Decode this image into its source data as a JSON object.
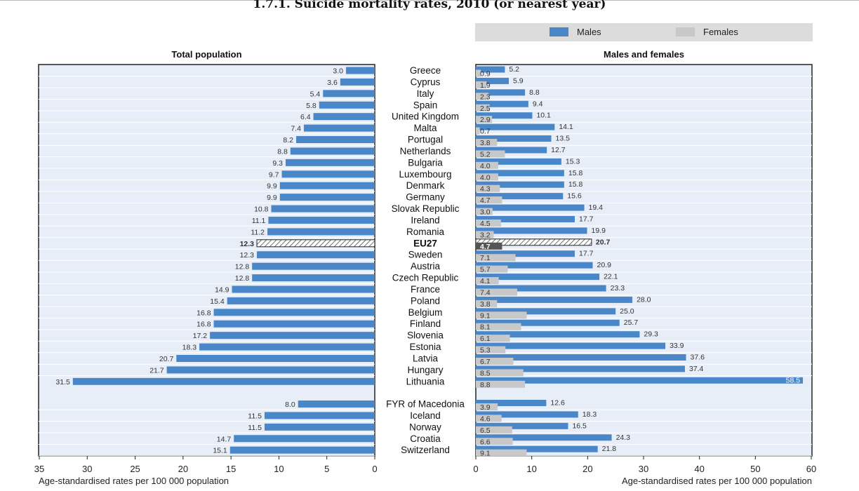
{
  "title": "1.7.1. Suicide mortality rates, 2010 (or nearest year)",
  "legend": {
    "males": "Males",
    "females": "Females"
  },
  "colors": {
    "male": "#4a87c9",
    "female": "#c8c8c8",
    "panel": "#e8eef8",
    "eu_fill": "#555555"
  },
  "chart_data": [
    {
      "type": "bar",
      "title": "Total population",
      "xlabel": "Age-standardised rates per 100 000 population",
      "xlim": [
        0,
        35
      ],
      "orientation": "horizontal-reversed",
      "xticks": [
        "35",
        "30",
        "25",
        "20",
        "15",
        "10",
        "5",
        "0"
      ],
      "categories": [
        "Greece",
        "Cyprus",
        "Italy",
        "Spain",
        "United Kingdom",
        "Malta",
        "Portugal",
        "Netherlands",
        "Bulgaria",
        "Luxembourg",
        "Denmark",
        "Germany",
        "Slovak Republic",
        "Ireland",
        "Romania",
        "EU27",
        "Sweden",
        "Austria",
        "Czech Republic",
        "France",
        "Poland",
        "Belgium",
        "Finland",
        "Slovenia",
        "Estonia",
        "Latvia",
        "Hungary",
        "Lithuania",
        "FYR of Macedonia",
        "Iceland",
        "Norway",
        "Croatia",
        "Switzerland"
      ],
      "values": [
        3.0,
        3.6,
        5.4,
        5.8,
        6.4,
        7.4,
        8.2,
        8.8,
        9.3,
        9.7,
        9.9,
        9.9,
        10.8,
        11.1,
        11.2,
        12.3,
        12.3,
        12.8,
        12.8,
        14.9,
        15.4,
        16.8,
        16.8,
        17.2,
        18.3,
        20.7,
        21.7,
        31.5,
        8.0,
        11.5,
        11.5,
        14.7,
        15.1
      ],
      "labels": [
        "3.0",
        "3.6",
        "5.4",
        "5.8",
        "6.4",
        "7.4",
        "8.2",
        "8.8",
        "9.3",
        "9.7",
        "9.9",
        "9.9",
        "10.8",
        "11.1",
        "11.2",
        "12.3",
        "12.3",
        "12.8",
        "12.8",
        "14.9",
        "15.4",
        "16.8",
        "16.8",
        "17.2",
        "18.3",
        "20.7",
        "21.7",
        "31.5",
        "8.0",
        "11.5",
        "11.5",
        "14.7",
        "15.1"
      ]
    },
    {
      "type": "bar",
      "title": "Males and females",
      "xlabel": "Age-standardised rates per 100 000 population",
      "xlim": [
        0,
        60
      ],
      "xticks": [
        "0",
        "10",
        "20",
        "30",
        "40",
        "50",
        "60"
      ],
      "categories": [
        "Greece",
        "Cyprus",
        "Italy",
        "Spain",
        "United Kingdom",
        "Malta",
        "Portugal",
        "Netherlands",
        "Bulgaria",
        "Luxembourg",
        "Denmark",
        "Germany",
        "Slovak Republic",
        "Ireland",
        "Romania",
        "EU27",
        "Sweden",
        "Austria",
        "Czech Republic",
        "France",
        "Poland",
        "Belgium",
        "Finland",
        "Slovenia",
        "Estonia",
        "Latvia",
        "Hungary",
        "Lithuania",
        "FYR of Macedonia",
        "Iceland",
        "Norway",
        "Croatia",
        "Switzerland"
      ],
      "series": [
        {
          "name": "Males",
          "values": [
            5.2,
            5.9,
            8.8,
            9.4,
            10.1,
            14.1,
            13.5,
            12.7,
            15.3,
            15.8,
            15.8,
            15.6,
            19.4,
            17.7,
            19.9,
            20.7,
            17.7,
            20.9,
            22.1,
            23.3,
            28.0,
            25.0,
            25.7,
            29.3,
            33.9,
            37.6,
            37.4,
            58.5,
            12.6,
            18.3,
            16.5,
            24.3,
            21.8
          ],
          "labels": [
            "5.2",
            "5.9",
            "8.8",
            "9.4",
            "10.1",
            "14.1",
            "13.5",
            "12.7",
            "15.3",
            "15.8",
            "15.8",
            "15.6",
            "19.4",
            "17.7",
            "19.9",
            "20.7",
            "17.7",
            "20.9",
            "22.1",
            "23.3",
            "28.0",
            "25.0",
            "25.7",
            "29.3",
            "33.9",
            "37.6",
            "37.4",
            "58.5",
            "12.6",
            "18.3",
            "16.5",
            "24.3",
            "21.8"
          ]
        },
        {
          "name": "Females",
          "values": [
            0.9,
            1.9,
            2.3,
            2.5,
            2.9,
            0.7,
            3.8,
            5.2,
            4.0,
            4.0,
            4.3,
            4.7,
            3.0,
            4.5,
            3.2,
            4.7,
            7.1,
            5.7,
            4.1,
            7.4,
            3.8,
            9.1,
            8.1,
            6.1,
            5.3,
            6.7,
            8.5,
            8.8,
            3.9,
            4.6,
            6.5,
            6.6,
            9.1
          ],
          "labels": [
            "0.9",
            "1.9",
            "2.3",
            "2.5",
            "2.9",
            "0.7",
            "3.8",
            "5.2",
            "4.0",
            "4.0",
            "4.3",
            "4.7",
            "3.0",
            "4.5",
            "3.2",
            "4.7",
            "7.1",
            "5.7",
            "4.1",
            "7.4",
            "3.8",
            "9.1",
            "8.1",
            "6.1",
            "5.3",
            "6.7",
            "8.5",
            "8.8",
            "3.9",
            "4.6",
            "6.5",
            "6.6",
            "9.1"
          ]
        }
      ]
    }
  ]
}
